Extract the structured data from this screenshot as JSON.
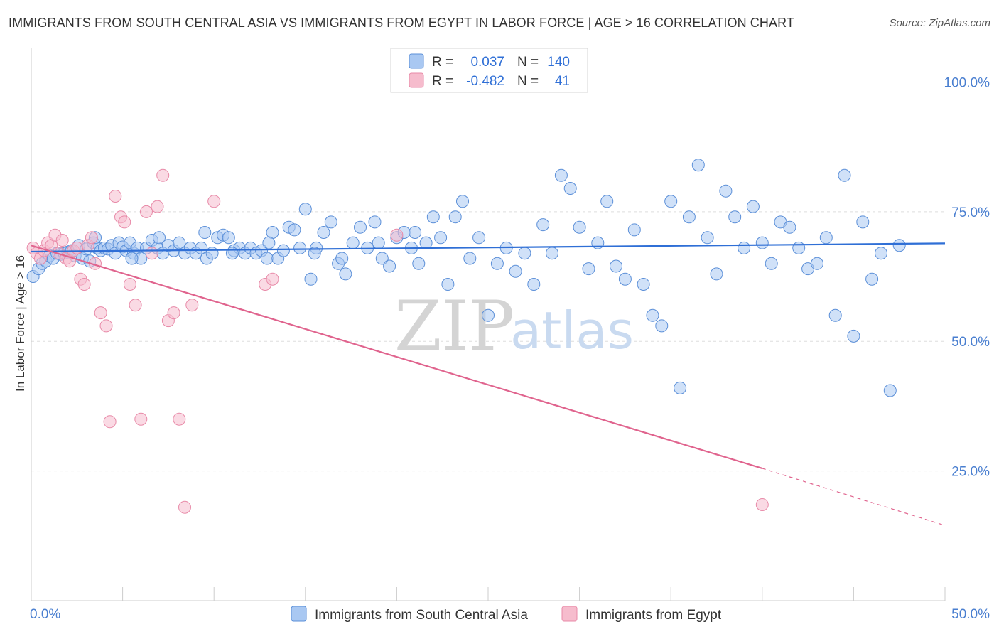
{
  "title": "IMMIGRANTS FROM SOUTH CENTRAL ASIA VS IMMIGRANTS FROM EGYPT IN LABOR FORCE | AGE > 16 CORRELATION CHART",
  "source": "Source: ZipAtlas.com",
  "watermark": {
    "zip": "ZIP",
    "atlas": "atlas"
  },
  "colors": {
    "blue_fill": "#a9c8f2",
    "blue_stroke": "#5b8fd8",
    "blue_line": "#2f6fd6",
    "pink_fill": "#f6bccd",
    "pink_stroke": "#e88aa8",
    "pink_line": "#e0648e",
    "axis_text": "#4a7fd0",
    "grid": "#dddddd"
  },
  "legend": {
    "rows": [
      {
        "r_label": "R =",
        "r_value": "0.037",
        "n_label": "N =",
        "n_value": "140"
      },
      {
        "r_label": "R =",
        "r_value": "-0.482",
        "n_label": "N =",
        "n_value": "41"
      }
    ]
  },
  "bottom_legend": [
    {
      "label": "Immigrants from South Central Asia"
    },
    {
      "label": "Immigrants from Egypt"
    }
  ],
  "chart_data": {
    "type": "scatter",
    "title": "IMMIGRANTS FROM SOUTH CENTRAL ASIA VS IMMIGRANTS FROM EGYPT IN LABOR FORCE | AGE > 16 CORRELATION CHART",
    "xlabel": "",
    "ylabel": "In Labor Force | Age > 16",
    "xlim": [
      0,
      50
    ],
    "ylim": [
      0,
      105
    ],
    "x_tick_labels": [
      "0.0%",
      "50.0%"
    ],
    "y_ticks": [
      {
        "value": 25,
        "label": "25.0%"
      },
      {
        "value": 50,
        "label": "50.0%"
      },
      {
        "value": 75,
        "label": "75.0%"
      },
      {
        "value": 100,
        "label": "100.0%"
      }
    ],
    "series": [
      {
        "name": "Immigrants from South Central Asia",
        "R": 0.037,
        "N": 140,
        "trend": {
          "x0": 0,
          "y0": 67.3,
          "x1": 50,
          "y1": 68.9
        },
        "points": [
          [
            0.1,
            62.5
          ],
          [
            0.4,
            64
          ],
          [
            0.6,
            65
          ],
          [
            0.8,
            65.5
          ],
          [
            1.0,
            66.5
          ],
          [
            1.2,
            66
          ],
          [
            1.4,
            67
          ],
          [
            1.6,
            66.8
          ],
          [
            1.8,
            67
          ],
          [
            2.0,
            67.2
          ],
          [
            2.2,
            67.5
          ],
          [
            2.4,
            66.5
          ],
          [
            2.6,
            68.5
          ],
          [
            2.8,
            66
          ],
          [
            3.0,
            67.8
          ],
          [
            3.2,
            65.5
          ],
          [
            3.4,
            69
          ],
          [
            3.6,
            68
          ],
          [
            3.8,
            67.5
          ],
          [
            4.0,
            68
          ],
          [
            4.2,
            67.8
          ],
          [
            4.4,
            68.5
          ],
          [
            4.6,
            67
          ],
          [
            4.8,
            69
          ],
          [
            5.0,
            68.2
          ],
          [
            5.2,
            67.5
          ],
          [
            5.4,
            69
          ],
          [
            5.6,
            67
          ],
          [
            5.8,
            68
          ],
          [
            6.0,
            66
          ],
          [
            6.3,
            68
          ],
          [
            6.6,
            69.5
          ],
          [
            6.9,
            68
          ],
          [
            7.2,
            67
          ],
          [
            7.5,
            68.5
          ],
          [
            7.8,
            67.5
          ],
          [
            8.1,
            69
          ],
          [
            8.4,
            67
          ],
          [
            8.7,
            68
          ],
          [
            9.0,
            67
          ],
          [
            9.3,
            68
          ],
          [
            9.6,
            66
          ],
          [
            9.9,
            67
          ],
          [
            10.2,
            70
          ],
          [
            10.5,
            70.5
          ],
          [
            10.8,
            70
          ],
          [
            11.1,
            67.5
          ],
          [
            11.4,
            68
          ],
          [
            11.7,
            67
          ],
          [
            12.0,
            68
          ],
          [
            12.3,
            67
          ],
          [
            12.6,
            67.5
          ],
          [
            12.9,
            66
          ],
          [
            13.2,
            71
          ],
          [
            13.5,
            66
          ],
          [
            13.8,
            67.5
          ],
          [
            14.1,
            72
          ],
          [
            14.4,
            71.5
          ],
          [
            14.7,
            68
          ],
          [
            15.0,
            75.5
          ],
          [
            15.3,
            62
          ],
          [
            15.6,
            68
          ],
          [
            16.0,
            71
          ],
          [
            16.4,
            73
          ],
          [
            16.8,
            65
          ],
          [
            17.2,
            63
          ],
          [
            17.6,
            69
          ],
          [
            18.0,
            72
          ],
          [
            18.4,
            68
          ],
          [
            18.8,
            73
          ],
          [
            19.2,
            66
          ],
          [
            19.6,
            64.5
          ],
          [
            20.0,
            70
          ],
          [
            20.4,
            71
          ],
          [
            20.8,
            68
          ],
          [
            21.2,
            65
          ],
          [
            21.6,
            69
          ],
          [
            22.0,
            74
          ],
          [
            22.4,
            70
          ],
          [
            22.8,
            61
          ],
          [
            23.2,
            74
          ],
          [
            23.6,
            77
          ],
          [
            24.0,
            66
          ],
          [
            24.5,
            70
          ],
          [
            25.0,
            55
          ],
          [
            25.5,
            65
          ],
          [
            26.0,
            68
          ],
          [
            26.5,
            63.5
          ],
          [
            27.0,
            67
          ],
          [
            27.5,
            61
          ],
          [
            28.0,
            72.5
          ],
          [
            28.5,
            67
          ],
          [
            29.0,
            82
          ],
          [
            29.5,
            79.5
          ],
          [
            30.0,
            72
          ],
          [
            30.5,
            64
          ],
          [
            31.0,
            69
          ],
          [
            31.5,
            77
          ],
          [
            32.0,
            64.5
          ],
          [
            32.5,
            62
          ],
          [
            33.0,
            71.5
          ],
          [
            33.5,
            61
          ],
          [
            34.0,
            55
          ],
          [
            34.5,
            53
          ],
          [
            35.0,
            77
          ],
          [
            35.5,
            41
          ],
          [
            36.0,
            74
          ],
          [
            36.5,
            84
          ],
          [
            37.0,
            70
          ],
          [
            37.5,
            63
          ],
          [
            38.0,
            79
          ],
          [
            38.5,
            74
          ],
          [
            39.0,
            68
          ],
          [
            39.5,
            76
          ],
          [
            40.0,
            69
          ],
          [
            40.5,
            65
          ],
          [
            41.0,
            73
          ],
          [
            41.5,
            72
          ],
          [
            42.0,
            68
          ],
          [
            42.5,
            64
          ],
          [
            43.0,
            65
          ],
          [
            43.5,
            70
          ],
          [
            44.0,
            55
          ],
          [
            44.5,
            82
          ],
          [
            45.0,
            51
          ],
          [
            45.5,
            73
          ],
          [
            46.0,
            62
          ],
          [
            46.5,
            67
          ],
          [
            47.0,
            40.5
          ],
          [
            47.5,
            68.5
          ],
          [
            3.5,
            70
          ],
          [
            5.5,
            66
          ],
          [
            7.0,
            70
          ],
          [
            9.5,
            71
          ],
          [
            11.0,
            67
          ],
          [
            13.0,
            69
          ],
          [
            15.5,
            67
          ],
          [
            17.0,
            66
          ],
          [
            19.0,
            69
          ],
          [
            21.0,
            71
          ]
        ]
      },
      {
        "name": "Immigrants from Egypt",
        "R": -0.482,
        "N": 41,
        "trend": {
          "x0": 0,
          "y0": 68.5,
          "x1": 40,
          "y1": 25.5,
          "dashed_to": {
            "x": 50,
            "y": 14.5
          }
        },
        "points": [
          [
            0.1,
            68
          ],
          [
            0.3,
            67
          ],
          [
            0.5,
            66
          ],
          [
            0.7,
            67.5
          ],
          [
            0.9,
            69
          ],
          [
            1.1,
            68.5
          ],
          [
            1.3,
            70.5
          ],
          [
            1.5,
            67
          ],
          [
            1.7,
            69.5
          ],
          [
            1.9,
            66
          ],
          [
            2.1,
            65.5
          ],
          [
            2.3,
            67.5
          ],
          [
            2.5,
            68
          ],
          [
            2.7,
            62
          ],
          [
            2.9,
            61
          ],
          [
            3.1,
            68.5
          ],
          [
            3.3,
            70
          ],
          [
            3.5,
            65
          ],
          [
            3.8,
            55.5
          ],
          [
            4.1,
            53
          ],
          [
            4.3,
            34.5
          ],
          [
            4.6,
            78
          ],
          [
            4.9,
            74
          ],
          [
            5.1,
            73
          ],
          [
            5.4,
            61
          ],
          [
            5.7,
            57
          ],
          [
            6.0,
            35
          ],
          [
            6.3,
            75
          ],
          [
            6.6,
            67
          ],
          [
            6.9,
            76
          ],
          [
            7.2,
            82
          ],
          [
            7.5,
            54
          ],
          [
            7.8,
            55.5
          ],
          [
            8.1,
            35
          ],
          [
            8.4,
            18
          ],
          [
            8.8,
            57
          ],
          [
            10.0,
            77
          ],
          [
            12.8,
            61
          ],
          [
            13.2,
            62
          ],
          [
            20.0,
            70.5
          ],
          [
            40.0,
            18.5
          ]
        ]
      }
    ]
  }
}
